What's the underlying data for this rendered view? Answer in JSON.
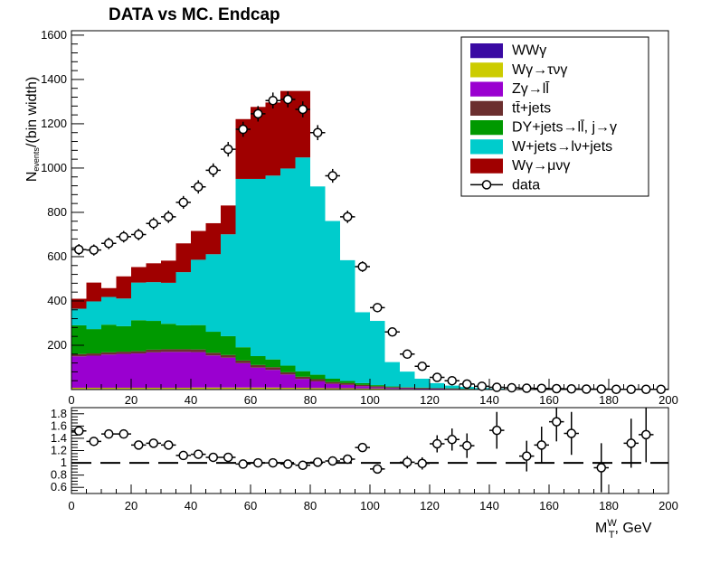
{
  "colors": {
    "WWg": "#3a0aa3",
    "Wg_taunug": "#cccc00",
    "Zg_ll": "#9a00d0",
    "ttbar": "#6b2f2f",
    "DY": "#009900",
    "Wjets": "#00cccc",
    "Wg_munug": "#a00000",
    "data": "#000000"
  },
  "chart_data": [
    {
      "type": "bar",
      "stacked": true,
      "title": "DATA vs MC. Endcap",
      "ylabel_main": "N",
      "ylabel_sub": "events",
      "ylabel_tail": "/(bin width)",
      "xlim": [
        0,
        200
      ],
      "ylim": [
        0,
        1620
      ],
      "xticks": [
        "0",
        "20",
        "40",
        "60",
        "80",
        "100",
        "120",
        "140",
        "160",
        "180",
        "200"
      ],
      "yticks": [
        "200",
        "400",
        "600",
        "800",
        "1000",
        "1200",
        "1400",
        "1600"
      ],
      "bin_width": 5,
      "legend_position": "top-right",
      "legend": [
        {
          "key": "WWg",
          "label": "WWγ"
        },
        {
          "key": "Wg_taunug",
          "label": "Wγ→τνγ"
        },
        {
          "key": "Zg_ll",
          "label": "Zγ→ll̄"
        },
        {
          "key": "ttbar",
          "label": "tt̄+jets"
        },
        {
          "key": "DY",
          "label": "DY+jets→ll̄, j→γ"
        },
        {
          "key": "Wjets",
          "label": "W+jets→lν+jets"
        },
        {
          "key": "Wg_munug",
          "label": "Wγ→μνγ"
        },
        {
          "key": "data",
          "label": "data"
        }
      ],
      "x_bin_centers": [
        2.5,
        7.5,
        12.5,
        17.5,
        22.5,
        27.5,
        32.5,
        37.5,
        42.5,
        47.5,
        52.5,
        57.5,
        62.5,
        67.5,
        72.5,
        77.5,
        82.5,
        87.5,
        92.5,
        97.5,
        102.5,
        107.5,
        112.5,
        117.5,
        122.5,
        127.5,
        132.5,
        137.5,
        142.5,
        147.5,
        152.5,
        157.5,
        162.5,
        167.5,
        172.5,
        177.5,
        182.5,
        187.5,
        192.5,
        197.5
      ],
      "stack_series": [
        {
          "key": "WWg",
          "name": "WWγ",
          "values": [
            3,
            3,
            3,
            3,
            3,
            3,
            3,
            3,
            3,
            3,
            3,
            3,
            3,
            3,
            3,
            3,
            2,
            2,
            2,
            2,
            2,
            1,
            1,
            1,
            1,
            1,
            0,
            0,
            0,
            0,
            0,
            0,
            0,
            0,
            0,
            0,
            0,
            0,
            0,
            0
          ]
        },
        {
          "key": "Wg_taunug",
          "name": "Wγ→τνγ",
          "values": [
            5,
            5,
            5,
            5,
            5,
            5,
            5,
            5,
            6,
            6,
            6,
            6,
            6,
            6,
            5,
            5,
            5,
            4,
            4,
            3,
            3,
            2,
            2,
            1,
            1,
            1,
            1,
            0,
            0,
            0,
            0,
            0,
            0,
            0,
            0,
            0,
            0,
            0,
            0,
            0
          ]
        },
        {
          "key": "Zg_ll",
          "name": "Zγ→ll̄",
          "values": [
            142,
            145,
            150,
            153,
            155,
            160,
            162,
            162,
            160,
            145,
            135,
            110,
            90,
            80,
            60,
            40,
            30,
            20,
            15,
            10,
            5,
            4,
            3,
            2,
            2,
            1,
            1,
            1,
            0,
            0,
            0,
            0,
            0,
            0,
            0,
            0,
            0,
            0,
            0,
            0
          ]
        },
        {
          "key": "ttbar",
          "name": "tt̄+jets",
          "values": [
            10,
            10,
            10,
            10,
            10,
            12,
            12,
            12,
            12,
            12,
            12,
            12,
            12,
            12,
            10,
            10,
            10,
            8,
            8,
            6,
            5,
            4,
            3,
            3,
            2,
            2,
            1,
            1,
            1,
            0,
            0,
            0,
            0,
            0,
            0,
            0,
            0,
            0,
            0,
            0
          ]
        },
        {
          "key": "DY",
          "name": "DY+jets→ll̄, j→γ",
          "values": [
            130,
            110,
            125,
            115,
            140,
            130,
            115,
            108,
            110,
            95,
            85,
            60,
            40,
            35,
            30,
            25,
            20,
            15,
            10,
            8,
            5,
            3,
            2,
            2,
            1,
            1,
            1,
            0,
            0,
            0,
            0,
            0,
            0,
            0,
            0,
            0,
            0,
            0,
            0,
            0
          ]
        },
        {
          "key": "Wjets",
          "name": "W+jets→lν+jets",
          "values": [
            75,
            125,
            125,
            125,
            170,
            175,
            185,
            240,
            295,
            350,
            460,
            760,
            800,
            830,
            890,
            965,
            850,
            712,
            545,
            320,
            290,
            110,
            70,
            40,
            22,
            12,
            8,
            5,
            3,
            2,
            2,
            1,
            1,
            1,
            0,
            0,
            0,
            0,
            0,
            0
          ]
        },
        {
          "key": "Wg_munug",
          "name": "Wγ→μνγ",
          "values": [
            45,
            85,
            40,
            100,
            70,
            85,
            100,
            130,
            130,
            140,
            130,
            270,
            325,
            330,
            350,
            300,
            0,
            0,
            0,
            0,
            0,
            0,
            0,
            0,
            0,
            0,
            0,
            0,
            0,
            0,
            0,
            0,
            0,
            0,
            0,
            0,
            0,
            0,
            0,
            0
          ]
        }
      ],
      "data_series": {
        "name": "data",
        "values": [
          632,
          630,
          660,
          690,
          700,
          750,
          780,
          845,
          915,
          990,
          1085,
          1175,
          1245,
          1305,
          1310,
          1265,
          1160,
          965,
          780,
          555,
          370,
          260,
          160,
          105,
          55,
          40,
          25,
          15,
          10,
          8,
          6,
          5,
          4,
          3,
          2,
          2,
          1,
          1,
          1,
          1
        ],
        "errors": [
          25,
          25,
          26,
          26,
          26,
          27,
          28,
          29,
          30,
          31,
          33,
          34,
          35,
          36,
          36,
          36,
          34,
          31,
          28,
          24,
          19,
          16,
          13,
          10,
          7,
          6,
          5,
          4,
          3,
          3,
          2,
          2,
          2,
          2,
          1,
          1,
          1,
          1,
          1,
          1
        ]
      }
    },
    {
      "type": "scatter",
      "role": "ratio",
      "xlim": [
        0,
        200
      ],
      "ylim": [
        0.5,
        1.9
      ],
      "reference_line": 1.0,
      "xlabel_main": "M",
      "xlabel_sup": "W",
      "xlabel_sub": "T",
      "xlabel_tail": ", GeV",
      "xticks": [
        "0",
        "20",
        "40",
        "60",
        "80",
        "100",
        "120",
        "140",
        "160",
        "180",
        "200"
      ],
      "yticks": [
        "0.6",
        "0.8",
        "1",
        "1.2",
        "1.4",
        "1.6",
        "1.8"
      ],
      "x_bin_centers": [
        2.5,
        7.5,
        12.5,
        17.5,
        22.5,
        27.5,
        32.5,
        37.5,
        42.5,
        47.5,
        52.5,
        57.5,
        62.5,
        67.5,
        72.5,
        77.5,
        82.5,
        87.5,
        92.5,
        97.5,
        102.5,
        112.5,
        117.5,
        122.5,
        127.5,
        132.5,
        142.5,
        152.5,
        157.5,
        162.5,
        167.5,
        177.5,
        187.5,
        192.5
      ],
      "values": [
        1.52,
        1.35,
        1.47,
        1.47,
        1.29,
        1.32,
        1.29,
        1.12,
        1.14,
        1.09,
        1.09,
        0.98,
        1.0,
        1.0,
        0.98,
        0.96,
        1.01,
        1.03,
        1.06,
        1.25,
        0.9,
        1.01,
        0.99,
        1.31,
        1.38,
        1.28,
        1.53,
        1.11,
        1.29,
        1.67,
        1.48,
        0.92,
        1.32,
        1.46
      ],
      "errors": [
        0.06,
        0.05,
        0.05,
        0.05,
        0.05,
        0.05,
        0.05,
        0.04,
        0.04,
        0.04,
        0.03,
        0.03,
        0.03,
        0.03,
        0.03,
        0.03,
        0.03,
        0.03,
        0.04,
        0.06,
        0.05,
        0.1,
        0.1,
        0.14,
        0.18,
        0.2,
        0.3,
        0.25,
        0.3,
        0.32,
        0.35,
        0.4,
        0.4,
        0.45
      ]
    }
  ]
}
